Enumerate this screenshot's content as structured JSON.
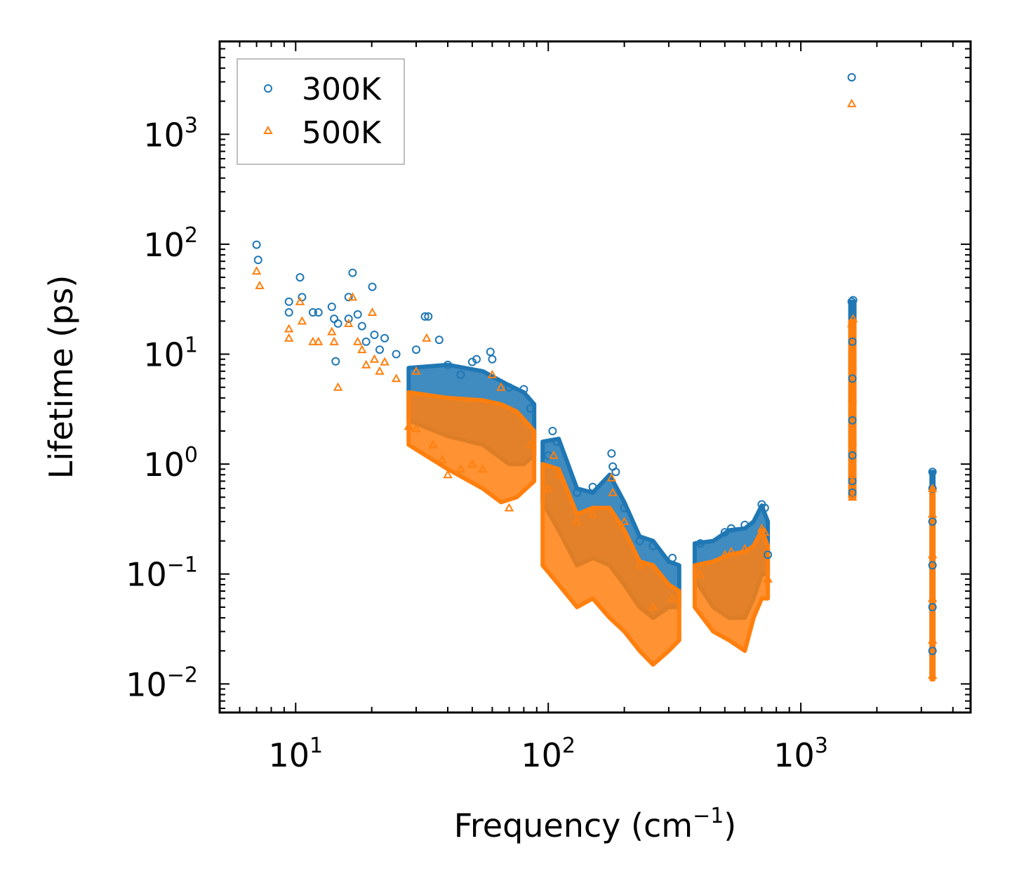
{
  "chart_data": {
    "type": "scatter",
    "title": "",
    "xlabel": "Frequency (cm",
    "xlabel_sup": "−1",
    "xlabel_end": ")",
    "ylabel": "Lifetime (ps)",
    "xscale": "log",
    "yscale": "log",
    "xlim": [
      5,
      4700
    ],
    "ylim": [
      0.0055,
      7000
    ],
    "x_ticks": [
      {
        "value": 10,
        "base": "10",
        "exp": "1"
      },
      {
        "value": 100,
        "base": "10",
        "exp": "2"
      },
      {
        "value": 1000,
        "base": "10",
        "exp": "3"
      }
    ],
    "y_ticks": [
      {
        "value": 0.01,
        "base": "10",
        "exp": "−2"
      },
      {
        "value": 0.1,
        "base": "10",
        "exp": "−1"
      },
      {
        "value": 1,
        "base": "10",
        "exp": "0"
      },
      {
        "value": 10,
        "base": "10",
        "exp": "1"
      },
      {
        "value": 100,
        "base": "10",
        "exp": "2"
      },
      {
        "value": 1000,
        "base": "10",
        "exp": "3"
      }
    ],
    "legend_position": "top-left",
    "series": [
      {
        "name": "300K",
        "marker": "circle",
        "color": "#1f77b4",
        "points": [
          [
            7.0,
            99
          ],
          [
            7.1,
            72
          ],
          [
            9.4,
            30
          ],
          [
            9.4,
            24
          ],
          [
            10.4,
            50
          ],
          [
            10.6,
            33
          ],
          [
            11.7,
            24
          ],
          [
            12.3,
            24
          ],
          [
            13.9,
            27
          ],
          [
            14.2,
            21
          ],
          [
            14.7,
            19
          ],
          [
            14.4,
            8.6
          ],
          [
            16.2,
            33
          ],
          [
            16.2,
            21
          ],
          [
            16.8,
            55
          ],
          [
            17.6,
            23
          ],
          [
            18.3,
            18
          ],
          [
            20.1,
            41
          ],
          [
            19.0,
            13
          ],
          [
            20.5,
            15
          ],
          [
            21.5,
            11
          ],
          [
            22.5,
            14
          ],
          [
            25.0,
            10
          ],
          [
            30.0,
            11
          ],
          [
            32.5,
            22
          ],
          [
            33.5,
            22
          ],
          [
            37.0,
            13.5
          ],
          [
            40.0,
            8.0
          ],
          [
            45.0,
            6.5
          ],
          [
            50.0,
            8.5
          ],
          [
            52.0,
            9.0
          ],
          [
            59.0,
            10.5
          ],
          [
            60.0,
            9.0
          ],
          [
            70.0,
            5.0
          ],
          [
            80.0,
            4.8
          ],
          [
            85.0,
            3.2
          ],
          [
            100.0,
            1.2
          ],
          [
            104.0,
            2.0
          ],
          [
            108.0,
            1.6
          ],
          [
            130.0,
            0.55
          ],
          [
            150.0,
            0.62
          ],
          [
            178.0,
            1.25
          ],
          [
            180.0,
            0.95
          ],
          [
            185.0,
            0.85
          ],
          [
            200.0,
            0.4
          ],
          [
            230.0,
            0.2
          ],
          [
            260.0,
            0.18
          ],
          [
            310.0,
            0.14
          ],
          [
            400.0,
            0.19
          ],
          [
            500.0,
            0.24
          ],
          [
            530.0,
            0.26
          ],
          [
            600.0,
            0.28
          ],
          [
            700.0,
            0.43
          ],
          [
            720.0,
            0.4
          ],
          [
            740.0,
            0.15
          ],
          [
            1590.0,
            3300
          ],
          [
            1590.0,
            30
          ],
          [
            1610.0,
            31
          ],
          [
            1600.0,
            13
          ],
          [
            1600.0,
            6
          ],
          [
            1600.0,
            2.5
          ],
          [
            1600.0,
            1.2
          ],
          [
            1600.0,
            0.7
          ],
          [
            1600.0,
            0.55
          ],
          [
            3320.0,
            0.85
          ],
          [
            3320.0,
            0.6
          ],
          [
            3320.0,
            0.3
          ],
          [
            3320.0,
            0.12
          ],
          [
            3320.0,
            0.05
          ],
          [
            3320.0,
            0.02
          ]
        ]
      },
      {
        "name": "500K",
        "marker": "triangle",
        "color": "#ff7f0e",
        "points": [
          [
            7.0,
            57
          ],
          [
            7.2,
            42
          ],
          [
            9.4,
            17
          ],
          [
            9.4,
            14
          ],
          [
            10.4,
            30
          ],
          [
            10.6,
            20
          ],
          [
            11.7,
            13
          ],
          [
            12.3,
            13
          ],
          [
            13.9,
            16
          ],
          [
            14.2,
            13
          ],
          [
            14.7,
            5.0
          ],
          [
            16.2,
            19
          ],
          [
            16.8,
            33
          ],
          [
            17.6,
            13
          ],
          [
            18.3,
            11
          ],
          [
            20.1,
            24
          ],
          [
            19.0,
            8.0
          ],
          [
            20.5,
            9.0
          ],
          [
            21.5,
            7.0
          ],
          [
            22.5,
            8.5
          ],
          [
            25.0,
            6.0
          ],
          [
            30.0,
            7.0
          ],
          [
            33.0,
            14
          ],
          [
            28.0,
            2.2
          ],
          [
            30.0,
            2.1
          ],
          [
            35.0,
            1.5
          ],
          [
            38.0,
            1.1
          ],
          [
            40.0,
            0.8
          ],
          [
            45.0,
            0.9
          ],
          [
            50.0,
            1.0
          ],
          [
            55.0,
            0.9
          ],
          [
            60.0,
            6.5
          ],
          [
            65.0,
            5.0
          ],
          [
            70.0,
            0.4
          ],
          [
            85.0,
            1.5
          ],
          [
            100.0,
            0.6
          ],
          [
            105.0,
            1.2
          ],
          [
            110.0,
            0.8
          ],
          [
            130.0,
            0.3
          ],
          [
            150.0,
            0.35
          ],
          [
            178.0,
            0.75
          ],
          [
            180.0,
            0.55
          ],
          [
            200.0,
            0.3
          ],
          [
            230.0,
            0.12
          ],
          [
            260.0,
            0.05
          ],
          [
            310.0,
            0.06
          ],
          [
            400.0,
            0.1
          ],
          [
            500.0,
            0.15
          ],
          [
            530.0,
            0.16
          ],
          [
            600.0,
            0.17
          ],
          [
            700.0,
            0.26
          ],
          [
            720.0,
            0.24
          ],
          [
            740.0,
            0.09
          ],
          [
            1590.0,
            1900
          ],
          [
            1590.0,
            19
          ],
          [
            1610.0,
            21
          ],
          [
            1600.0,
            8
          ],
          [
            1600.0,
            4
          ],
          [
            1600.0,
            1.6
          ],
          [
            1600.0,
            0.8
          ],
          [
            1600.0,
            0.5
          ],
          [
            3320.0,
            0.6
          ],
          [
            3320.0,
            0.35
          ],
          [
            3320.0,
            0.15
          ],
          [
            3320.0,
            0.06
          ],
          [
            3320.0,
            0.025
          ],
          [
            3320.0,
            0.012
          ]
        ]
      }
    ],
    "bands": [
      {
        "series": "300K",
        "comment": "dense point cloud envelopes [x, ymin, ymax]",
        "segments": [
          [
            [
              28,
              2.5,
              7.5
            ],
            [
              40,
              1.8,
              8.0
            ],
            [
              55,
              1.5,
              7.0
            ],
            [
              70,
              1.0,
              5.2
            ],
            [
              80,
              1.0,
              4.5
            ],
            [
              88,
              1.2,
              3.5
            ]
          ],
          [
            [
              95,
              0.45,
              1.6
            ],
            [
              110,
              0.25,
              1.7
            ],
            [
              130,
              0.12,
              0.6
            ],
            [
              150,
              0.14,
              0.55
            ],
            [
              175,
              0.12,
              0.8
            ],
            [
              200,
              0.08,
              0.45
            ],
            [
              230,
              0.05,
              0.22
            ],
            [
              260,
              0.04,
              0.2
            ],
            [
              300,
              0.05,
              0.13
            ],
            [
              330,
              0.05,
              0.12
            ]
          ],
          [
            [
              380,
              0.09,
              0.19
            ],
            [
              450,
              0.05,
              0.2
            ],
            [
              520,
              0.04,
              0.25
            ],
            [
              600,
              0.04,
              0.26
            ],
            [
              650,
              0.06,
              0.3
            ],
            [
              700,
              0.1,
              0.42
            ],
            [
              740,
              0.1,
              0.3
            ]
          ],
          [
            [
              1570,
              0.5,
              30
            ],
            [
              1630,
              0.5,
              30
            ]
          ],
          [
            [
              3290,
              0.012,
              0.85
            ],
            [
              3350,
              0.012,
              0.85
            ]
          ]
        ]
      },
      {
        "series": "500K",
        "comment": "dense point cloud envelopes [x, ymin, ymax]",
        "segments": [
          [
            [
              28,
              1.5,
              4.5
            ],
            [
              40,
              0.9,
              4.0
            ],
            [
              55,
              0.6,
              3.8
            ],
            [
              65,
              0.45,
              3.5
            ],
            [
              75,
              0.5,
              3.0
            ],
            [
              88,
              0.7,
              2.0
            ]
          ],
          [
            [
              95,
              0.12,
              1.0
            ],
            [
              110,
              0.08,
              0.9
            ],
            [
              130,
              0.05,
              0.35
            ],
            [
              150,
              0.06,
              0.4
            ],
            [
              175,
              0.04,
              0.4
            ],
            [
              200,
              0.03,
              0.25
            ],
            [
              230,
              0.02,
              0.13
            ],
            [
              260,
              0.015,
              0.12
            ],
            [
              300,
              0.02,
              0.08
            ],
            [
              330,
              0.025,
              0.07
            ]
          ],
          [
            [
              380,
              0.05,
              0.12
            ],
            [
              450,
              0.03,
              0.13
            ],
            [
              520,
              0.025,
              0.15
            ],
            [
              600,
              0.02,
              0.16
            ],
            [
              650,
              0.04,
              0.18
            ],
            [
              700,
              0.06,
              0.25
            ],
            [
              740,
              0.06,
              0.18
            ]
          ],
          [
            [
              1570,
              0.5,
              20
            ],
            [
              1630,
              0.5,
              20
            ]
          ],
          [
            [
              3290,
              0.011,
              0.6
            ],
            [
              3350,
              0.011,
              0.6
            ]
          ]
        ]
      }
    ]
  }
}
